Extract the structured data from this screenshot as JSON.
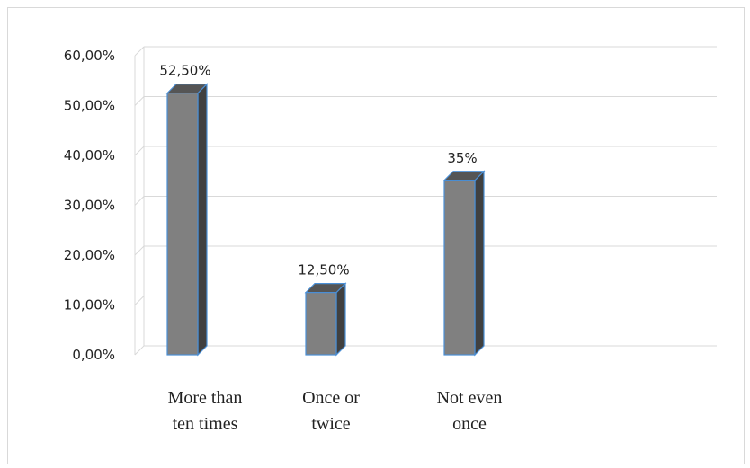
{
  "chart_data": {
    "type": "bar",
    "categories": [
      [
        "More than",
        "ten times"
      ],
      [
        "Once or",
        "twice"
      ],
      [
        "Not even",
        "once"
      ]
    ],
    "values": [
      52.5,
      12.5,
      35
    ],
    "data_labels": [
      "52,50%",
      "12,50%",
      "35%"
    ],
    "y_ticks": [
      0,
      10,
      20,
      30,
      40,
      50,
      60
    ],
    "y_tick_labels": [
      "0,00%",
      "10,00%",
      "20,00%",
      "30,00%",
      "40,00%",
      "50,00%",
      "60,00%"
    ],
    "ylim": [
      0,
      60
    ],
    "grid": true,
    "legend": "none",
    "title": "",
    "xlabel": "",
    "ylabel": "",
    "style": "3d-column",
    "colors": {
      "bar_front": "#808080",
      "bar_top": "#555555",
      "bar_side": "#404040",
      "bar_outline": "#4a8fd6",
      "grid": "#d9d9d9",
      "frame": "#d9d9d9"
    }
  }
}
